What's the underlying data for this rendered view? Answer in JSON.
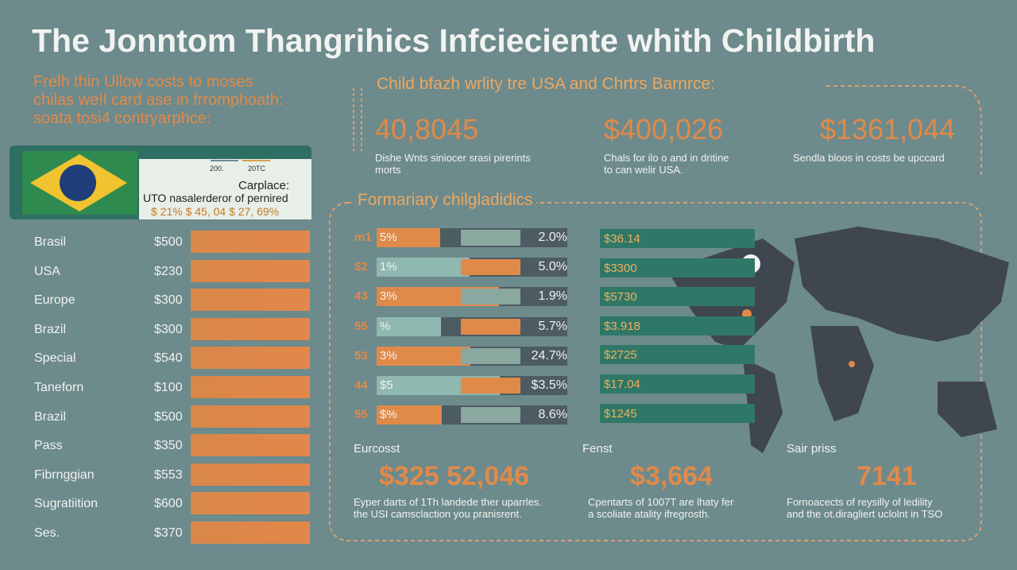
{
  "title": "The Jonntom Thangrihics Infcieciente whith Childbirth",
  "intro": [
    "Frelh thin Ullow costs to moses",
    "chilas we!l card ase in frromphoath:",
    "soata tosi4 contryarphce:"
  ],
  "flag_card": {
    "mini_labels": [
      "200.",
      "20TC"
    ],
    "heading": "Carplace:",
    "text": "UTO nasalerderor of pernired",
    "values": "$ 21% $ 45, 04 $ 27, 69%"
  },
  "left_list": [
    [
      "Brasil",
      "$500"
    ],
    [
      "USA",
      "$230"
    ],
    [
      "Europe",
      "$300"
    ],
    [
      "Brazil",
      "$300"
    ],
    [
      "Special",
      "$540"
    ],
    [
      "Taneforn",
      "$100"
    ],
    [
      "Brazil",
      "$500"
    ],
    [
      "Pass",
      "$350"
    ],
    [
      "Fibrnggian",
      "$553"
    ],
    [
      "Sugratiition",
      "$600"
    ],
    [
      "Ses.",
      "$370"
    ]
  ],
  "section_heading": "Child bfazh wrlity tre USA and Chrtrs Barnrce:",
  "stats": [
    {
      "value": "40,8045",
      "text": [
        "Dishe Wnts siniocer srasi pirerints",
        "morts"
      ]
    },
    {
      "value": "$400,026",
      "text": [
        "Chals for ilo o and in dritine",
        "to can welir USA."
      ]
    },
    {
      "value": "$1361,044",
      "text": [
        "Sendla bloos in costs be upccard"
      ]
    }
  ],
  "subheading": "Formariary chilgladidics",
  "mid_rows": [
    [
      "m1",
      "5%",
      "2.0%"
    ],
    [
      "$2",
      "1%",
      "5.0%"
    ],
    [
      "43",
      "3%",
      "1.9%"
    ],
    [
      "55",
      "%",
      "5.7%"
    ],
    [
      "53",
      "3%",
      "24.7%"
    ],
    [
      "44",
      "$5",
      "$3.5%"
    ],
    [
      "55",
      "$%",
      "8.6%"
    ]
  ],
  "map_rows": [
    "$36.14",
    "$3300",
    "$5730",
    "$3.918",
    "$2725",
    "$17.04",
    "$1245"
  ],
  "bottom": [
    {
      "label": "Eurcosst",
      "value": "$325 52,046",
      "text": [
        "Eyper darts of 1Th landede ther uparrles.",
        "the USI camsclaction you pranisrent."
      ]
    },
    {
      "label": "Fenst",
      "value": "$3,664",
      "text": [
        "Cpentarts of 1007T are lhaty fer",
        "a scoliate atality ifregrosth."
      ]
    },
    {
      "label": "Sair priss",
      "value": "7141",
      "text": [
        "Fornoacects of reysilly of ledility",
        "and the ot.diragliert uclolnt in TSO"
      ]
    }
  ]
}
